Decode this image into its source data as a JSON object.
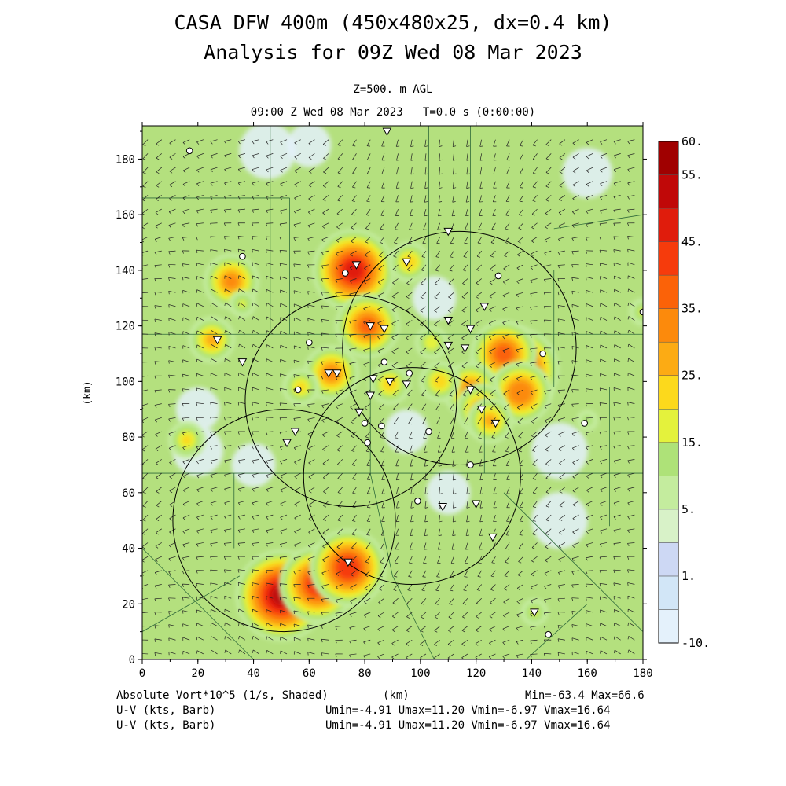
{
  "header": {
    "title_line1": "CASA DFW 400m (450x480x25, dx=0.4 km)",
    "title_line2": "Analysis for 09Z Wed 08 Mar 2023",
    "level": "Z=500. m AGL",
    "valid_time": "09:00 Z Wed 08 Mar 2023   T=0.0 s (0:00:00)"
  },
  "footer": {
    "shaded_field": "Absolute Vort*10^5 (1/s, Shaded)",
    "x_unit": "(km)",
    "minmax": "Min=-63.4 Max=66.6",
    "barb1_label": "U-V (kts, Barb)",
    "barb1_stats": "Umin=-4.91 Umax=11.20 Vmin=-6.97 Vmax=16.64",
    "barb2_label": "U-V (kts, Barb)",
    "barb2_stats": "Umin=-4.91 Umax=11.20 Vmin=-6.97 Vmax=16.64"
  },
  "chart_data": {
    "type": "heatmap",
    "field": "Absolute Vort*10^5 (1/s, Shaded)",
    "xlabel": "(km)",
    "ylabel": "(km)",
    "xlim": [
      0,
      180
    ],
    "ylim": [
      0,
      192
    ],
    "x_ticks": [
      "0",
      "20",
      "40",
      "60",
      "80",
      "100",
      "120",
      "140",
      "160",
      "180"
    ],
    "y_ticks": [
      "0",
      "20",
      "40",
      "60",
      "80",
      "100",
      "120",
      "140",
      "160",
      "180"
    ],
    "min": -63.4,
    "max": 66.6,
    "colorbar": {
      "levels": [
        -10,
        0,
        1,
        3,
        5,
        10,
        15,
        20,
        25,
        30,
        35,
        40,
        45,
        50,
        55,
        60
      ],
      "labels": [
        {
          "text": "60.",
          "value": 60
        },
        {
          "text": "55.",
          "value": 55
        },
        {
          "text": "45.",
          "value": 45
        },
        {
          "text": "35.",
          "value": 35
        },
        {
          "text": "25.",
          "value": 25
        },
        {
          "text": "15.",
          "value": 15
        },
        {
          "text": "5.",
          "value": 5
        },
        {
          "text": "1.",
          "value": 1
        },
        {
          "text": "-10.",
          "value": -10
        }
      ],
      "colors": [
        "#e4f1fb",
        "#d2e6f7",
        "#cdd8f4",
        "#d8f2c8",
        "#c4ec9e",
        "#aee278",
        "#e4f23c",
        "#fcd91c",
        "#fcab14",
        "#fc8a0c",
        "#fb6208",
        "#f63b0c",
        "#e01c0c",
        "#c00808",
        "#a00000"
      ]
    },
    "background_color": "#b4e07e",
    "radar_rings": [
      {
        "cx": 114,
        "cy": 112,
        "r": 42
      },
      {
        "cx": 75,
        "cy": 93,
        "r": 38
      },
      {
        "cx": 97,
        "cy": 66,
        "r": 39
      },
      {
        "cx": 51,
        "cy": 50,
        "r": 40
      }
    ],
    "vort_maxima": [
      {
        "x": 50,
        "y": 23,
        "v": 50
      },
      {
        "x": 63,
        "y": 27,
        "v": 42
      },
      {
        "x": 74,
        "y": 33,
        "v": 42
      },
      {
        "x": 134,
        "y": 104,
        "v": 48
      },
      {
        "x": 130,
        "y": 110,
        "v": 36
      },
      {
        "x": 136,
        "y": 96,
        "v": 34
      },
      {
        "x": 76,
        "y": 140,
        "v": 45
      },
      {
        "x": 68,
        "y": 103,
        "v": 30
      },
      {
        "x": 81,
        "y": 120,
        "v": 35
      },
      {
        "x": 118,
        "y": 97,
        "v": 30
      },
      {
        "x": 122,
        "y": 90,
        "v": 28
      },
      {
        "x": 32,
        "y": 136,
        "v": 30
      },
      {
        "x": 25,
        "y": 115,
        "v": 25
      },
      {
        "x": 96,
        "y": 143,
        "v": 22
      },
      {
        "x": 107,
        "y": 100,
        "v": 22
      },
      {
        "x": 57,
        "y": 98,
        "v": 20
      },
      {
        "x": 16,
        "y": 79,
        "v": 20
      },
      {
        "x": 104,
        "y": 114,
        "v": 18
      },
      {
        "x": 125,
        "y": 86,
        "v": 25
      },
      {
        "x": 89,
        "y": 99,
        "v": 22
      },
      {
        "x": 36,
        "y": 128,
        "v": 15
      },
      {
        "x": 141,
        "y": 17,
        "v": 15
      },
      {
        "x": 180,
        "y": 125,
        "v": 15
      },
      {
        "x": 160,
        "y": 86,
        "v": 12
      }
    ],
    "neg_minima": [
      {
        "x": 45,
        "y": 183,
        "v": -6
      },
      {
        "x": 150,
        "y": 75,
        "v": -6
      },
      {
        "x": 150,
        "y": 50,
        "v": -6
      },
      {
        "x": 20,
        "y": 75,
        "v": -5
      },
      {
        "x": 40,
        "y": 70,
        "v": -4
      },
      {
        "x": 110,
        "y": 60,
        "v": -4
      },
      {
        "x": 160,
        "y": 175,
        "v": -5
      },
      {
        "x": 60,
        "y": 185,
        "v": -4
      },
      {
        "x": 20,
        "y": 90,
        "v": -4
      },
      {
        "x": 105,
        "y": 130,
        "v": -4
      },
      {
        "x": 95,
        "y": 82,
        "v": -4
      }
    ],
    "station_triangles": [
      {
        "x": 88,
        "y": 190
      },
      {
        "x": 110,
        "y": 154
      },
      {
        "x": 95,
        "y": 143
      },
      {
        "x": 77,
        "y": 142
      },
      {
        "x": 82,
        "y": 120
      },
      {
        "x": 87,
        "y": 119
      },
      {
        "x": 118,
        "y": 119
      },
      {
        "x": 110,
        "y": 113
      },
      {
        "x": 116,
        "y": 112
      },
      {
        "x": 27,
        "y": 115
      },
      {
        "x": 36,
        "y": 107
      },
      {
        "x": 67,
        "y": 103
      },
      {
        "x": 70,
        "y": 103
      },
      {
        "x": 89,
        "y": 100
      },
      {
        "x": 95,
        "y": 99
      },
      {
        "x": 118,
        "y": 97
      },
      {
        "x": 122,
        "y": 90
      },
      {
        "x": 127,
        "y": 85
      },
      {
        "x": 82,
        "y": 95
      },
      {
        "x": 78,
        "y": 89
      },
      {
        "x": 55,
        "y": 82
      },
      {
        "x": 52,
        "y": 78
      },
      {
        "x": 108,
        "y": 55
      },
      {
        "x": 120,
        "y": 56
      },
      {
        "x": 126,
        "y": 44
      },
      {
        "x": 74,
        "y": 35
      },
      {
        "x": 141,
        "y": 17
      },
      {
        "x": 123,
        "y": 127
      },
      {
        "x": 110,
        "y": 122
      },
      {
        "x": 83,
        "y": 101
      }
    ],
    "station_circles": [
      {
        "x": 17,
        "y": 183
      },
      {
        "x": 36,
        "y": 145
      },
      {
        "x": 73,
        "y": 139
      },
      {
        "x": 128,
        "y": 138
      },
      {
        "x": 60,
        "y": 114
      },
      {
        "x": 56,
        "y": 97
      },
      {
        "x": 87,
        "y": 107
      },
      {
        "x": 80,
        "y": 85
      },
      {
        "x": 86,
        "y": 84
      },
      {
        "x": 81,
        "y": 78
      },
      {
        "x": 103,
        "y": 82
      },
      {
        "x": 118,
        "y": 70
      },
      {
        "x": 99,
        "y": 57
      },
      {
        "x": 159,
        "y": 85
      },
      {
        "x": 180,
        "y": 125
      },
      {
        "x": 144,
        "y": 110
      },
      {
        "x": 146,
        "y": 9
      },
      {
        "x": 96,
        "y": 103
      }
    ]
  }
}
